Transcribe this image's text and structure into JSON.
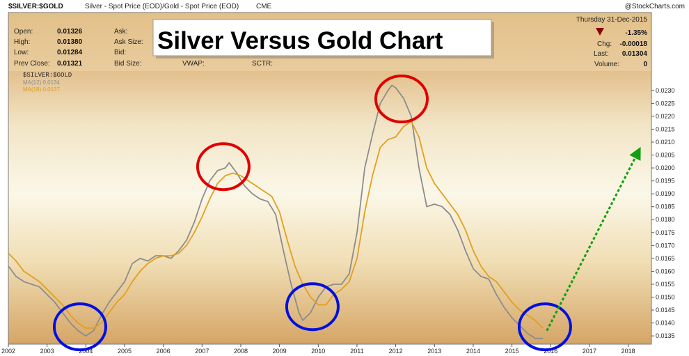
{
  "header": {
    "symbol": "$SILVER:$GOLD",
    "description": "Silver - Spot Price (EOD)/Gold - Spot Price (EOD)",
    "exchange": "CME",
    "brand": "@StockCharts.com",
    "date": "Thursday  31-Dec-2015",
    "change_pct": "-1.35%",
    "stats_left": [
      {
        "label": "Open:",
        "value": "0.01326"
      },
      {
        "label": "High:",
        "value": "0.01380"
      },
      {
        "label": "Low:",
        "value": "0.01284"
      },
      {
        "label": "Prev Close:",
        "value": "0.01321"
      }
    ],
    "stats_mid": [
      {
        "label": "Ask:"
      },
      {
        "label": "Ask Size:"
      },
      {
        "label": "Bid:"
      },
      {
        "label": "Bid Size:"
      }
    ],
    "vwap_label": "VWAP:",
    "sctr_label": "SCTR:",
    "stats_right": [
      {
        "label": "Chg:",
        "value": "-0.00018"
      },
      {
        "label": "Last:",
        "value": "0.01304"
      },
      {
        "label": "Volume:",
        "value": "0"
      }
    ]
  },
  "overlay_title": "Silver Versus Gold Chart",
  "colors": {
    "ma12": "#8c8c8c",
    "ma18": "#e0a020",
    "peak_circle": "#e00000",
    "trough_circle": "#0010e0",
    "projection_arrow": "#10a010",
    "down_triangle": "#8b0000",
    "change_text": "#b00000"
  },
  "chart_data": {
    "type": "line",
    "legend": {
      "title": "$SILVER:$GOLD",
      "entries": [
        "MA(12) 0.0134",
        "MA(18) 0.0137"
      ],
      "placement": "top-left"
    },
    "x_tick_labels": [
      "2002",
      "2003",
      "2004",
      "2005",
      "2006",
      "2007",
      "2008",
      "2009",
      "2010",
      "2011",
      "2012",
      "2013",
      "2014",
      "2015",
      "2016",
      "2017",
      "2018"
    ],
    "xlim": [
      2002.0,
      2018.6
    ],
    "y_tick_labels": [
      "0.0135",
      "0.0140",
      "0.0145",
      "0.0150",
      "0.0155",
      "0.0160",
      "0.0165",
      "0.0170",
      "0.0175",
      "0.0180",
      "0.0185",
      "0.0190",
      "0.0195",
      "0.0200",
      "0.0205",
      "0.0210",
      "0.0215",
      "0.0220",
      "0.0225",
      "0.0230"
    ],
    "ylim": [
      0.01318,
      0.02375
    ],
    "y_axis_side": "right",
    "series": [
      {
        "name": "MA(12) 0.0134",
        "points": [
          [
            2002.0,
            0.0162
          ],
          [
            2002.2,
            0.0158
          ],
          [
            2002.4,
            0.0156
          ],
          [
            2002.6,
            0.0155
          ],
          [
            2002.8,
            0.0154
          ],
          [
            2003.0,
            0.0151
          ],
          [
            2003.2,
            0.0148
          ],
          [
            2003.4,
            0.0144
          ],
          [
            2003.6,
            0.014
          ],
          [
            2003.8,
            0.0137
          ],
          [
            2004.0,
            0.0135
          ],
          [
            2004.2,
            0.0137
          ],
          [
            2004.4,
            0.0143
          ],
          [
            2004.6,
            0.0148
          ],
          [
            2004.8,
            0.0152
          ],
          [
            2005.0,
            0.0156
          ],
          [
            2005.2,
            0.0163
          ],
          [
            2005.4,
            0.0165
          ],
          [
            2005.6,
            0.0164
          ],
          [
            2005.8,
            0.0166
          ],
          [
            2006.0,
            0.0166
          ],
          [
            2006.2,
            0.0165
          ],
          [
            2006.4,
            0.0168
          ],
          [
            2006.6,
            0.0172
          ],
          [
            2006.8,
            0.0179
          ],
          [
            2007.0,
            0.0188
          ],
          [
            2007.2,
            0.0195
          ],
          [
            2007.4,
            0.0199
          ],
          [
            2007.6,
            0.02
          ],
          [
            2007.7,
            0.0202
          ],
          [
            2007.9,
            0.0198
          ],
          [
            2008.1,
            0.0193
          ],
          [
            2008.3,
            0.019
          ],
          [
            2008.5,
            0.0188
          ],
          [
            2008.7,
            0.0187
          ],
          [
            2008.9,
            0.0182
          ],
          [
            2009.1,
            0.0168
          ],
          [
            2009.3,
            0.0155
          ],
          [
            2009.5,
            0.0144
          ],
          [
            2009.6,
            0.0141
          ],
          [
            2009.8,
            0.0144
          ],
          [
            2010.0,
            0.015
          ],
          [
            2010.2,
            0.0154
          ],
          [
            2010.4,
            0.0155
          ],
          [
            2010.6,
            0.0155
          ],
          [
            2010.8,
            0.0159
          ],
          [
            2011.0,
            0.0175
          ],
          [
            2011.2,
            0.02
          ],
          [
            2011.4,
            0.0213
          ],
          [
            2011.6,
            0.0225
          ],
          [
            2011.8,
            0.023
          ],
          [
            2011.9,
            0.0232
          ],
          [
            2012.0,
            0.0231
          ],
          [
            2012.2,
            0.0227
          ],
          [
            2012.4,
            0.022
          ],
          [
            2012.6,
            0.02
          ],
          [
            2012.8,
            0.0185
          ],
          [
            2013.0,
            0.0186
          ],
          [
            2013.2,
            0.0185
          ],
          [
            2013.4,
            0.0182
          ],
          [
            2013.6,
            0.0176
          ],
          [
            2013.8,
            0.0168
          ],
          [
            2014.0,
            0.0161
          ],
          [
            2014.2,
            0.0158
          ],
          [
            2014.4,
            0.0157
          ],
          [
            2014.6,
            0.0151
          ],
          [
            2014.8,
            0.0146
          ],
          [
            2015.0,
            0.0142
          ],
          [
            2015.2,
            0.0139
          ],
          [
            2015.4,
            0.0136
          ],
          [
            2015.6,
            0.0134
          ],
          [
            2015.8,
            0.0134
          ]
        ]
      },
      {
        "name": "MA(18) 0.0137",
        "points": [
          [
            2002.0,
            0.0167
          ],
          [
            2002.2,
            0.0164
          ],
          [
            2002.4,
            0.016
          ],
          [
            2002.6,
            0.0158
          ],
          [
            2002.8,
            0.0156
          ],
          [
            2003.0,
            0.0153
          ],
          [
            2003.2,
            0.015
          ],
          [
            2003.4,
            0.0147
          ],
          [
            2003.6,
            0.0143
          ],
          [
            2003.8,
            0.014
          ],
          [
            2004.0,
            0.0138
          ],
          [
            2004.2,
            0.0138
          ],
          [
            2004.4,
            0.014
          ],
          [
            2004.6,
            0.0144
          ],
          [
            2004.8,
            0.0148
          ],
          [
            2005.0,
            0.0151
          ],
          [
            2005.2,
            0.0156
          ],
          [
            2005.4,
            0.016
          ],
          [
            2005.6,
            0.0163
          ],
          [
            2005.8,
            0.0165
          ],
          [
            2006.0,
            0.0166
          ],
          [
            2006.2,
            0.0166
          ],
          [
            2006.4,
            0.0167
          ],
          [
            2006.6,
            0.017
          ],
          [
            2006.8,
            0.0175
          ],
          [
            2007.0,
            0.0181
          ],
          [
            2007.2,
            0.0188
          ],
          [
            2007.4,
            0.0194
          ],
          [
            2007.6,
            0.0197
          ],
          [
            2007.8,
            0.0198
          ],
          [
            2008.0,
            0.0197
          ],
          [
            2008.2,
            0.0195
          ],
          [
            2008.4,
            0.0193
          ],
          [
            2008.6,
            0.0191
          ],
          [
            2008.8,
            0.0189
          ],
          [
            2009.0,
            0.0183
          ],
          [
            2009.2,
            0.0172
          ],
          [
            2009.4,
            0.0162
          ],
          [
            2009.6,
            0.0155
          ],
          [
            2009.8,
            0.015
          ],
          [
            2010.0,
            0.0147
          ],
          [
            2010.2,
            0.0147
          ],
          [
            2010.4,
            0.0151
          ],
          [
            2010.6,
            0.0153
          ],
          [
            2010.8,
            0.0156
          ],
          [
            2011.0,
            0.0165
          ],
          [
            2011.2,
            0.0183
          ],
          [
            2011.4,
            0.0197
          ],
          [
            2011.6,
            0.0208
          ],
          [
            2011.8,
            0.0211
          ],
          [
            2012.0,
            0.0212
          ],
          [
            2012.2,
            0.0216
          ],
          [
            2012.4,
            0.0218
          ],
          [
            2012.6,
            0.0212
          ],
          [
            2012.8,
            0.02
          ],
          [
            2013.0,
            0.0194
          ],
          [
            2013.2,
            0.019
          ],
          [
            2013.4,
            0.0186
          ],
          [
            2013.6,
            0.0182
          ],
          [
            2013.8,
            0.0176
          ],
          [
            2014.0,
            0.0168
          ],
          [
            2014.2,
            0.0162
          ],
          [
            2014.4,
            0.0158
          ],
          [
            2014.6,
            0.0156
          ],
          [
            2014.8,
            0.0152
          ],
          [
            2015.0,
            0.0148
          ],
          [
            2015.2,
            0.0145
          ],
          [
            2015.4,
            0.0143
          ],
          [
            2015.6,
            0.0141
          ],
          [
            2015.8,
            0.0138
          ]
        ]
      }
    ],
    "annotations": {
      "peak_circles": [
        {
          "x": 2007.55,
          "y": 0.02005
        },
        {
          "x": 2012.15,
          "y": 0.02267
        }
      ],
      "trough_circles": [
        {
          "x": 2003.85,
          "y": 0.01385
        },
        {
          "x": 2009.85,
          "y": 0.01463
        },
        {
          "x": 2015.85,
          "y": 0.01385
        }
      ],
      "projection_arrow": {
        "from": [
          2015.9,
          0.0137
        ],
        "to": [
          2018.25,
          0.0206
        ]
      }
    }
  }
}
